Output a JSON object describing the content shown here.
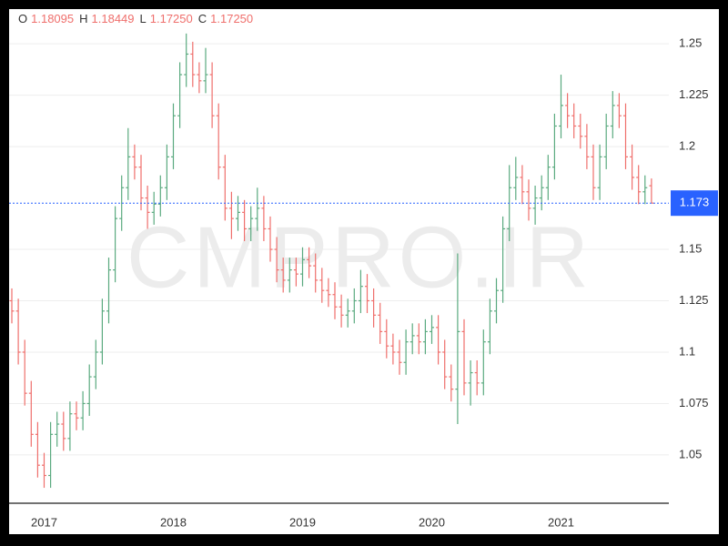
{
  "chart_data": {
    "type": "ohlc",
    "watermark": "CMPRO.IR",
    "legend": [
      {
        "label": "O",
        "value": "1.18095"
      },
      {
        "label": "H",
        "value": "1.18449"
      },
      {
        "label": "L",
        "value": "1.17250"
      },
      {
        "label": "C",
        "value": "1.17250"
      }
    ],
    "last_price": {
      "value": 1.1725,
      "label": "1.173"
    },
    "up_color": "#5aaa7f",
    "down_color": "#ef6f6c",
    "price_line_color": "#2962ff",
    "ylim": [
      1.0265,
      1.266
    ],
    "yticks": [
      1.05,
      1.075,
      1.1,
      1.125,
      1.15,
      1.2,
      1.225,
      1.25
    ],
    "grid": true,
    "categories": [
      null,
      null,
      null,
      null,
      null,
      "2017",
      null,
      null,
      null,
      null,
      null,
      null,
      null,
      null,
      null,
      null,
      null,
      null,
      null,
      null,
      null,
      null,
      null,
      null,
      null,
      "2018",
      null,
      null,
      null,
      null,
      null,
      null,
      null,
      null,
      null,
      null,
      null,
      null,
      null,
      null,
      null,
      null,
      null,
      null,
      null,
      "2019",
      null,
      null,
      null,
      null,
      null,
      null,
      null,
      null,
      null,
      null,
      null,
      null,
      null,
      null,
      null,
      null,
      null,
      null,
      null,
      "2020",
      null,
      null,
      null,
      null,
      null,
      null,
      null,
      null,
      null,
      null,
      null,
      null,
      null,
      null,
      null,
      null,
      null,
      null,
      null,
      "2021",
      null,
      null,
      null,
      null,
      null,
      null,
      null,
      null,
      null,
      null,
      null,
      null,
      null,
      null
    ],
    "open": [
      1.125,
      1.12,
      1.1,
      1.08,
      1.06,
      1.045,
      1.04,
      1.06,
      1.065,
      1.058,
      1.07,
      1.068,
      1.075,
      1.088,
      1.1,
      1.12,
      1.14,
      1.165,
      1.18,
      1.195,
      1.19,
      1.175,
      1.168,
      1.172,
      1.18,
      1.195,
      1.215,
      1.235,
      1.245,
      1.235,
      1.232,
      1.235,
      1.215,
      1.19,
      1.17,
      1.165,
      1.168,
      1.16,
      1.165,
      1.17,
      1.16,
      1.15,
      1.14,
      1.135,
      1.14,
      1.138,
      1.145,
      1.142,
      1.135,
      1.13,
      1.128,
      1.122,
      1.118,
      1.12,
      1.125,
      1.132,
      1.125,
      1.118,
      1.11,
      1.103,
      1.1,
      1.095,
      1.105,
      1.108,
      1.105,
      1.11,
      1.112,
      1.1,
      1.088,
      1.082,
      1.11,
      1.085,
      1.09,
      1.085,
      1.105,
      1.12,
      1.13,
      1.16,
      1.18,
      1.185,
      1.178,
      1.17,
      1.175,
      1.18,
      1.19,
      1.21,
      1.22,
      1.215,
      1.21,
      1.205,
      1.195,
      1.18,
      1.195,
      1.21,
      1.22,
      1.215,
      1.195,
      1.185,
      1.178,
      1.18095
    ],
    "high": [
      1.131,
      1.126,
      1.106,
      1.086,
      1.066,
      1.051,
      1.066,
      1.071,
      1.071,
      1.076,
      1.076,
      1.081,
      1.094,
      1.106,
      1.126,
      1.146,
      1.171,
      1.186,
      1.209,
      1.201,
      1.196,
      1.181,
      1.178,
      1.186,
      1.201,
      1.221,
      1.241,
      1.255,
      1.251,
      1.241,
      1.248,
      1.241,
      1.221,
      1.196,
      1.178,
      1.176,
      1.174,
      1.171,
      1.18,
      1.176,
      1.166,
      1.156,
      1.146,
      1.146,
      1.146,
      1.151,
      1.151,
      1.148,
      1.141,
      1.136,
      1.134,
      1.128,
      1.126,
      1.131,
      1.14,
      1.138,
      1.131,
      1.124,
      1.116,
      1.109,
      1.106,
      1.111,
      1.114,
      1.114,
      1.116,
      1.118,
      1.118,
      1.106,
      1.094,
      1.148,
      1.116,
      1.096,
      1.096,
      1.111,
      1.126,
      1.136,
      1.166,
      1.191,
      1.195,
      1.191,
      1.184,
      1.181,
      1.186,
      1.196,
      1.216,
      1.235,
      1.226,
      1.221,
      1.216,
      1.211,
      1.201,
      1.201,
      1.216,
      1.227,
      1.226,
      1.221,
      1.201,
      1.191,
      1.186,
      1.18449
    ],
    "low": [
      1.114,
      1.094,
      1.074,
      1.054,
      1.039,
      1.034,
      1.034,
      1.054,
      1.052,
      1.052,
      1.062,
      1.062,
      1.069,
      1.082,
      1.094,
      1.114,
      1.134,
      1.159,
      1.174,
      1.184,
      1.169,
      1.16,
      1.162,
      1.166,
      1.174,
      1.189,
      1.209,
      1.229,
      1.229,
      1.226,
      1.226,
      1.209,
      1.184,
      1.164,
      1.155,
      1.159,
      1.154,
      1.154,
      1.159,
      1.154,
      1.144,
      1.134,
      1.129,
      1.129,
      1.132,
      1.132,
      1.136,
      1.129,
      1.124,
      1.122,
      1.116,
      1.112,
      1.112,
      1.114,
      1.119,
      1.119,
      1.112,
      1.104,
      1.097,
      1.094,
      1.089,
      1.089,
      1.099,
      1.099,
      1.099,
      1.104,
      1.094,
      1.082,
      1.076,
      1.065,
      1.079,
      1.074,
      1.079,
      1.079,
      1.099,
      1.114,
      1.124,
      1.154,
      1.174,
      1.172,
      1.164,
      1.162,
      1.169,
      1.174,
      1.184,
      1.204,
      1.209,
      1.204,
      1.199,
      1.189,
      1.174,
      1.174,
      1.189,
      1.204,
      1.209,
      1.189,
      1.179,
      1.172,
      1.172,
      1.1725
    ],
    "close": [
      1.12,
      1.1,
      1.08,
      1.06,
      1.045,
      1.04,
      1.06,
      1.065,
      1.058,
      1.07,
      1.068,
      1.075,
      1.088,
      1.1,
      1.12,
      1.14,
      1.165,
      1.18,
      1.195,
      1.19,
      1.175,
      1.168,
      1.172,
      1.18,
      1.195,
      1.215,
      1.235,
      1.245,
      1.235,
      1.232,
      1.235,
      1.215,
      1.19,
      1.17,
      1.165,
      1.168,
      1.16,
      1.165,
      1.17,
      1.16,
      1.15,
      1.14,
      1.135,
      1.14,
      1.138,
      1.145,
      1.142,
      1.135,
      1.13,
      1.128,
      1.122,
      1.118,
      1.12,
      1.125,
      1.132,
      1.125,
      1.118,
      1.11,
      1.103,
      1.1,
      1.095,
      1.105,
      1.108,
      1.105,
      1.11,
      1.112,
      1.1,
      1.088,
      1.082,
      1.11,
      1.085,
      1.09,
      1.085,
      1.105,
      1.12,
      1.13,
      1.16,
      1.18,
      1.185,
      1.178,
      1.17,
      1.175,
      1.18,
      1.19,
      1.21,
      1.22,
      1.215,
      1.21,
      1.205,
      1.195,
      1.18,
      1.195,
      1.21,
      1.22,
      1.215,
      1.195,
      1.185,
      1.178,
      1.18,
      1.1725
    ]
  }
}
